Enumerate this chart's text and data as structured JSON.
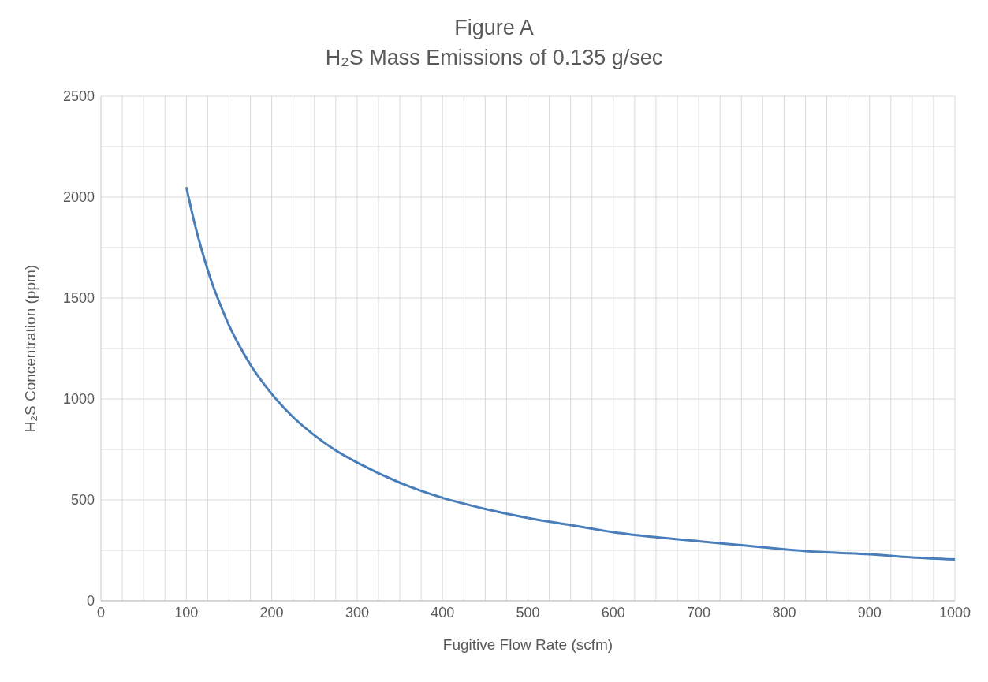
{
  "chart_data": {
    "type": "line",
    "title": "Figure A",
    "subtitle": "H₂S Mass Emissions of 0.135 g/sec",
    "xlabel": "Fugitive Flow Rate (scfm)",
    "ylabel": "H₂S Concentration (ppm)",
    "x": [
      100,
      110,
      120,
      130,
      140,
      150,
      160,
      175,
      200,
      225,
      250,
      275,
      300,
      350,
      400,
      450,
      500,
      550,
      600,
      650,
      700,
      750,
      800,
      850,
      900,
      950,
      1000
    ],
    "series": [
      {
        "color": "#4a7ebb",
        "values": [
          2050,
          1865,
          1710,
          1575,
          1465,
          1365,
          1280,
          1170,
          1025,
          910,
          820,
          745,
          685,
          585,
          510,
          455,
          410,
          375,
          340,
          315,
          295,
          275,
          255,
          240,
          230,
          215,
          205
        ]
      }
    ],
    "xlim": [
      0,
      1000
    ],
    "xticks": [
      0,
      {
        "value": 25,
        "label": null
      },
      {
        "value": 50,
        "label": null
      },
      {
        "value": 75,
        "label": null
      },
      100,
      {
        "value": 125,
        "label": null
      },
      {
        "value": 150,
        "label": null
      },
      {
        "value": 175,
        "label": null
      },
      200,
      {
        "value": 225,
        "label": null
      },
      {
        "value": 250,
        "label": null
      },
      {
        "value": 275,
        "label": null
      },
      300,
      {
        "value": 325,
        "label": null
      },
      {
        "value": 350,
        "label": null
      },
      {
        "value": 375,
        "label": null
      },
      400,
      {
        "value": 425,
        "label": null
      },
      {
        "value": 450,
        "label": null
      },
      {
        "value": 475,
        "label": null
      },
      500,
      {
        "value": 525,
        "label": null
      },
      {
        "value": 550,
        "label": null
      },
      {
        "value": 575,
        "label": null
      },
      600,
      {
        "value": 625,
        "label": null
      },
      {
        "value": 650,
        "label": null
      },
      {
        "value": 675,
        "label": null
      },
      700,
      {
        "value": 725,
        "label": null
      },
      {
        "value": 750,
        "label": null
      },
      {
        "value": 775,
        "label": null
      },
      800,
      {
        "value": 825,
        "label": null
      },
      {
        "value": 850,
        "label": null
      },
      {
        "value": 875,
        "label": null
      },
      900,
      {
        "value": 925,
        "label": null
      },
      {
        "value": 950,
        "label": null
      },
      {
        "value": 975,
        "label": null
      },
      1000
    ],
    "ylim": [
      0,
      2500
    ],
    "yticks": [
      0,
      {
        "value": 250,
        "label": null
      },
      500,
      {
        "value": 750,
        "label": null
      },
      1000,
      {
        "value": 1250,
        "label": null
      },
      1500,
      {
        "value": 1750,
        "label": null
      },
      2000,
      {
        "value": 2250,
        "label": null
      },
      2500
    ],
    "grid": true,
    "marker": "none",
    "line_style": "solid"
  }
}
